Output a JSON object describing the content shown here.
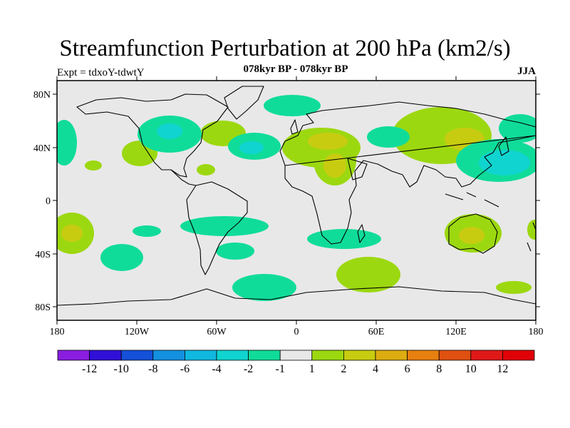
{
  "title": "Streamfunction Perturbation at 200 hPa (km2/s)",
  "subtitle": "078kyr BP - 078kyr BP",
  "experiment": "Expt = tdxoY-tdwtY",
  "season": "JJA",
  "map": {
    "lat_ticks": [
      "80N",
      "40N",
      "0",
      "40S",
      "80S"
    ],
    "lon_ticks": [
      "180",
      "120W",
      "60W",
      "0",
      "60E",
      "120E",
      "180"
    ],
    "background_color": "#e8e8e8",
    "coastline_color": "#000000"
  },
  "colorbar": {
    "labels": [
      "-12",
      "-10",
      "-8",
      "-6",
      "-4",
      "-2",
      "-1",
      "1",
      "2",
      "4",
      "6",
      "8",
      "10",
      "12"
    ],
    "colors": [
      "#8a1ee0",
      "#3010d8",
      "#1450d8",
      "#1490e0",
      "#10b8e0",
      "#10d4d0",
      "#10dc9a",
      "#e8e8e8",
      "#9cd810",
      "#c8cc10",
      "#dcac10",
      "#e88010",
      "#e05010",
      "#e01818",
      "#e00008"
    ]
  }
}
